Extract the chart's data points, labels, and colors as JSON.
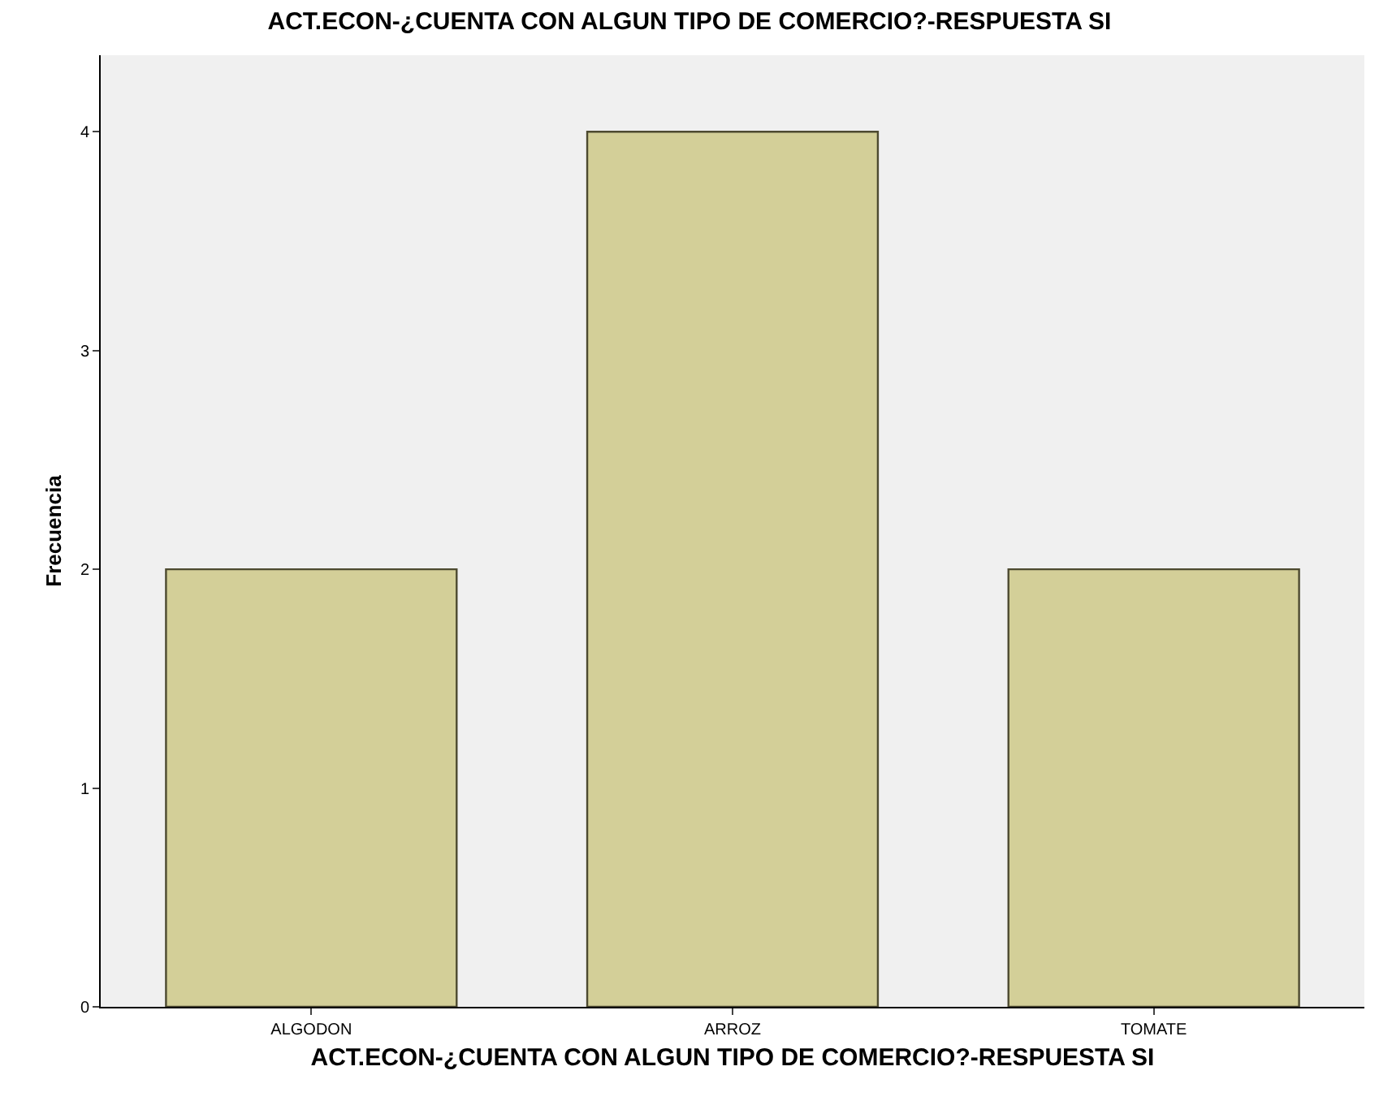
{
  "chart_data": {
    "type": "bar",
    "title": "ACT.ECON-¿CUENTA CON ALGUN TIPO DE COMERCIO?-RESPUESTA SI",
    "xlabel": "ACT.ECON-¿CUENTA CON ALGUN TIPO DE COMERCIO?-RESPUESTA SI",
    "ylabel": "Frecuencia",
    "categories": [
      "ALGODON",
      "ARROZ",
      "TOMATE"
    ],
    "values": [
      2,
      4,
      2
    ],
    "color": "#d3cf98",
    "ylim": [
      0,
      4.35
    ],
    "yticks": [
      0,
      1,
      2,
      3,
      4
    ],
    "grid": false
  }
}
